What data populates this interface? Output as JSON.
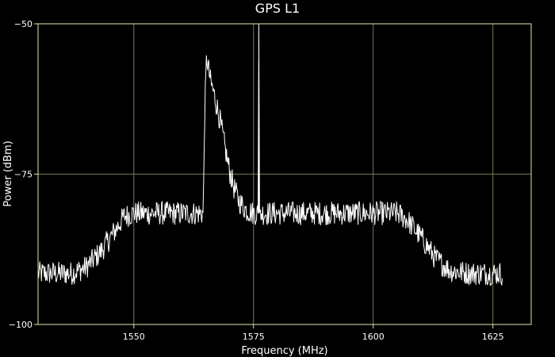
{
  "chart_data": {
    "type": "line",
    "title": "GPS L1",
    "xlabel": "Frequency (MHz)",
    "ylabel": "Power (dBm)",
    "xlim": [
      1530,
      1633
    ],
    "ylim": [
      -100,
      -50
    ],
    "x_ticks": [
      1550,
      1575,
      1600,
      1625
    ],
    "y_ticks": [
      -50,
      -75,
      -100
    ],
    "y_tick_labels": [
      "−50",
      "−75",
      "−100"
    ],
    "grid": true,
    "legend": "none",
    "colors": {
      "background": "#000000",
      "frame": "#e6e6b4",
      "grid": "#7a7a55",
      "trace": "#ffffff"
    },
    "series": [
      {
        "x": [
          1530.0,
          1537.0,
          1540.0,
          1543.0,
          1546.0,
          1548.0,
          1550.0,
          1555.0,
          1560.0,
          1564.5,
          1564.8,
          1565.2,
          1566.0,
          1567.0,
          1568.0,
          1569.0,
          1570.0,
          1571.0,
          1572.0,
          1573.5,
          1575.0,
          1576.0,
          1576.1,
          1576.2,
          1576.4,
          1577.0,
          1580.0,
          1590.0,
          1600.0,
          1605.0,
          1607.0,
          1610.0,
          1613.0,
          1616.0,
          1620.0,
          1627.0
        ],
        "y": [
          -91.5,
          -91.5,
          -90.5,
          -88.0,
          -84.5,
          -82.0,
          -81.5,
          -81.5,
          -81.5,
          -81.5,
          -65.0,
          -55.5,
          -59.5,
          -62.5,
          -66.0,
          -70.5,
          -74.5,
          -77.5,
          -79.5,
          -81.0,
          -81.5,
          -81.5,
          -50.0,
          -81.0,
          -81.5,
          -81.5,
          -81.5,
          -81.5,
          -81.5,
          -81.5,
          -82.5,
          -85.5,
          -89.0,
          -91.0,
          -91.5,
          -91.5
        ],
        "noise_db": 2
      }
    ]
  }
}
